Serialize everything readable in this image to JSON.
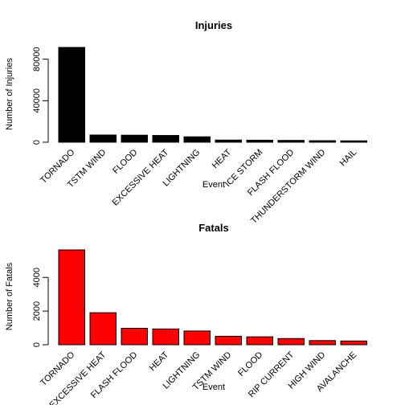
{
  "chart_data": [
    {
      "type": "bar",
      "title": "Injuries",
      "xlabel": "Event",
      "ylabel": "Number of Injuries",
      "categories": [
        "TORNADO",
        "TSTM WIND",
        "FLOOD",
        "EXCESSIVE HEAT",
        "LIGHTNING",
        "HEAT",
        "ICE STORM",
        "FLASH FLOOD",
        "THUNDERSTORM WIND",
        "HAIL"
      ],
      "values": [
        91346,
        6957,
        6789,
        6525,
        5230,
        2100,
        1975,
        1777,
        1488,
        1361
      ],
      "ylim": [
        0,
        91346
      ],
      "yticks": [
        0,
        40000,
        80000
      ],
      "ytick_labels": [
        "0",
        "40000",
        "80000"
      ],
      "bar_color": "#000000"
    },
    {
      "type": "bar",
      "title": "Fatals",
      "xlabel": "Event",
      "ylabel": "Number of Fatals",
      "categories": [
        "TORNADO",
        "EXCESSIVE HEAT",
        "FLASH FLOOD",
        "HEAT",
        "LIGHTNING",
        "TSTM WIND",
        "FLOOD",
        "RIP CURRENT",
        "HIGH WIND",
        "AVALANCHE"
      ],
      "values": [
        5633,
        1903,
        978,
        937,
        816,
        504,
        470,
        368,
        248,
        224
      ],
      "ylim": [
        0,
        5633
      ],
      "yticks": [
        0,
        2000,
        4000
      ],
      "ytick_labels": [
        "0",
        "2000",
        "4000"
      ],
      "bar_color": "#ff0000"
    }
  ]
}
